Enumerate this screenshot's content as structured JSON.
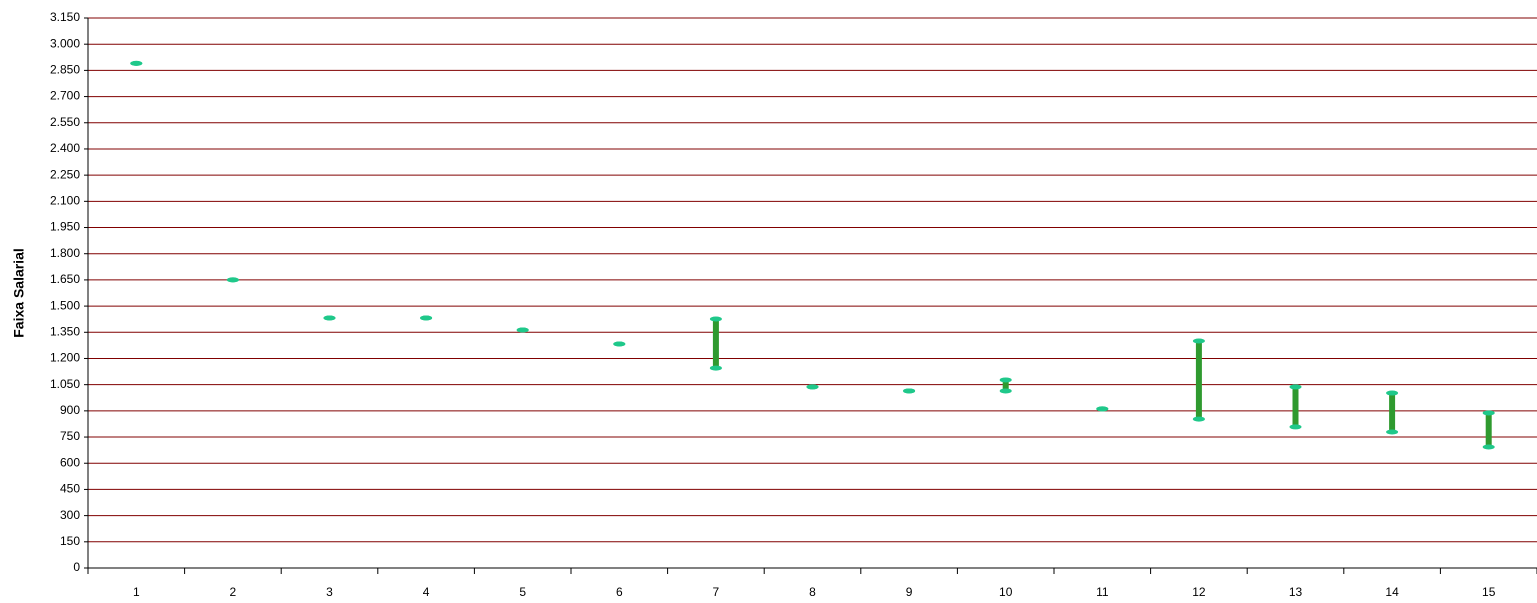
{
  "chart_data": {
    "type": "range",
    "y_label": "Faixa Salarial",
    "categories": [
      "1",
      "2",
      "3",
      "4",
      "5",
      "6",
      "7",
      "8",
      "9",
      "10",
      "11",
      "12",
      "13",
      "14",
      "15"
    ],
    "low": [
      2890,
      1650,
      1432,
      1432,
      1363,
      1283,
      1145,
      1037,
      1014,
      1014,
      911,
      853,
      808,
      779,
      693
    ],
    "high": [
      2890,
      1650,
      1432,
      1432,
      1363,
      1283,
      1426,
      1037,
      1014,
      1077,
      911,
      1300,
      1037,
      1002,
      888
    ],
    "color": "#2f9a2f",
    "marker_color": "#1fc88a",
    "grid_color": "#800000",
    "ylim": [
      0,
      3150
    ],
    "yticks": [
      0,
      150,
      300,
      450,
      600,
      750,
      900,
      {
        "value": 1050,
        "label": "1.050"
      },
      {
        "value": 1200,
        "label": "1.200"
      },
      {
        "value": 1350,
        "label": "1.350"
      },
      {
        "value": 1500,
        "label": "1.500"
      },
      {
        "value": 1650,
        "label": "1.650"
      },
      {
        "value": 1800,
        "label": "1.800"
      },
      {
        "value": 1950,
        "label": "1.950"
      },
      {
        "value": 2100,
        "label": "2.100"
      },
      {
        "value": 2250,
        "label": "2.250"
      },
      {
        "value": 2400,
        "label": "2.400"
      },
      {
        "value": 2550,
        "label": "2.550"
      },
      {
        "value": 2700,
        "label": "2.700"
      },
      {
        "value": 2850,
        "label": "2.850"
      },
      {
        "value": 3000,
        "label": "3.000"
      },
      {
        "value": 3150,
        "label": "3.150"
      }
    ],
    "grid": true
  }
}
